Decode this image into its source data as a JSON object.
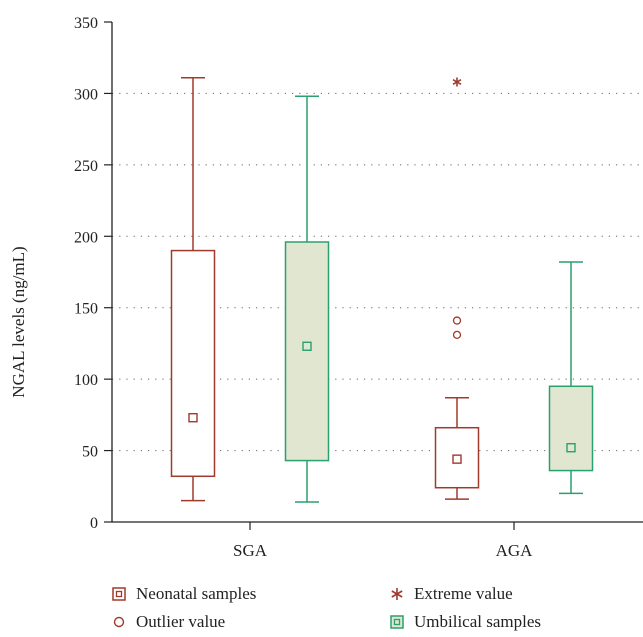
{
  "chart_data": {
    "type": "box",
    "ylabel": "NGAL levels (ng/mL)",
    "xlabel": "",
    "ylim": [
      0,
      350
    ],
    "yticks": [
      0,
      50,
      100,
      150,
      200,
      250,
      300,
      350
    ],
    "grid": "horizontal dotted",
    "categories": [
      "SGA",
      "AGA"
    ],
    "series": [
      {
        "name": "Neonatal samples",
        "color": "#a03a2c",
        "fill": "#ffffff",
        "boxes": [
          {
            "category": "SGA",
            "whisker_low": 15,
            "q1": 32,
            "median": 73,
            "q3": 190,
            "whisker_high": 311
          },
          {
            "category": "AGA",
            "whisker_low": 16,
            "q1": 24,
            "median": 44,
            "q3": 66,
            "whisker_high": 87,
            "outliers": [
              141,
              131
            ],
            "extremes": [
              308
            ]
          }
        ]
      },
      {
        "name": "Umbilical samples",
        "color": "#2aa06e",
        "fill": "#e0e6d0",
        "boxes": [
          {
            "category": "SGA",
            "whisker_low": 14,
            "q1": 43,
            "median": 123,
            "q3": 196,
            "whisker_high": 298
          },
          {
            "category": "AGA",
            "whisker_low": 20,
            "q1": 36,
            "median": 52,
            "q3": 95,
            "whisker_high": 182
          }
        ]
      }
    ],
    "legend": [
      {
        "label": "Neonatal samples",
        "marker": "square-in-square",
        "color": "#a03a2c"
      },
      {
        "label": "Extreme value",
        "marker": "asterisk",
        "color": "#a03a2c"
      },
      {
        "label": "Outlier value",
        "marker": "circle",
        "color": "#a03a2c"
      },
      {
        "label": "Umbilical samples",
        "marker": "square-in-square-filled",
        "color": "#2aa06e"
      }
    ]
  }
}
